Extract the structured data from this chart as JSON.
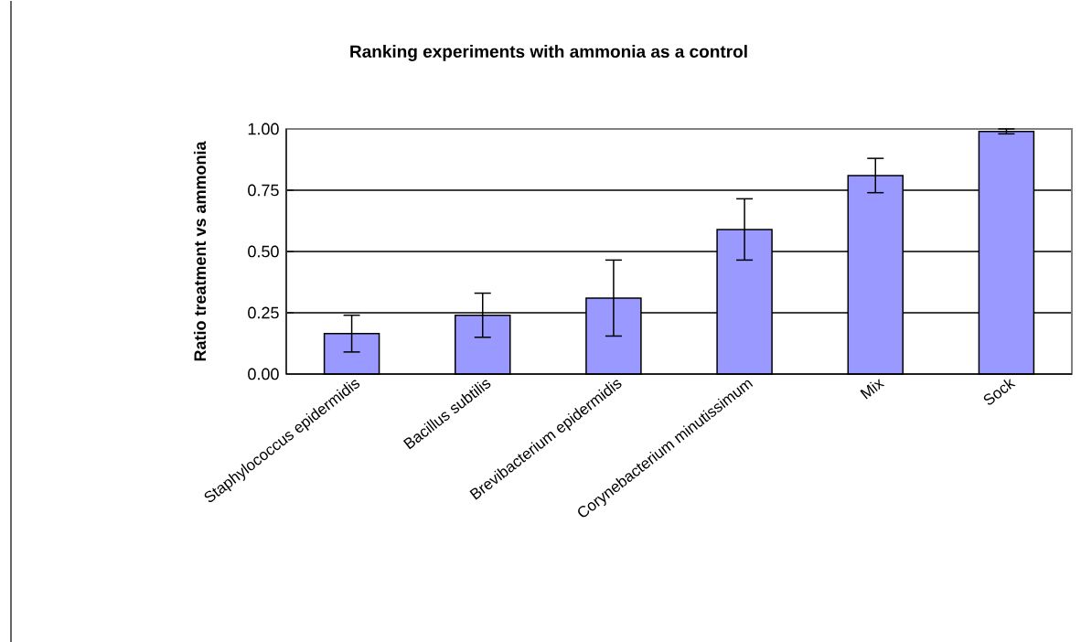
{
  "chart_data": {
    "type": "bar",
    "title": "Ranking experiments with ammonia as a control",
    "ylabel": "Ratio treatment vs ammonia",
    "categories": [
      "Staphylococcus epidermidis",
      "Bacillus subtilis",
      "Brevibacterium epidermidis",
      "Corynebacterium minutissimum",
      "Mix",
      "Sock"
    ],
    "values": [
      0.165,
      0.24,
      0.31,
      0.59,
      0.81,
      0.99
    ],
    "errors": [
      0.075,
      0.09,
      0.155,
      0.125,
      0.07,
      0.01
    ],
    "color": "#9999ff",
    "ylim": [
      0,
      1
    ],
    "yticks": [
      {
        "value": 0,
        "label": "0.00"
      },
      {
        "value": 0.25,
        "label": "0.25"
      },
      {
        "value": 0.5,
        "label": "0.50"
      },
      {
        "value": 0.75,
        "label": "0.75"
      },
      {
        "value": 1,
        "label": "1.00"
      }
    ],
    "grid": "y"
  }
}
